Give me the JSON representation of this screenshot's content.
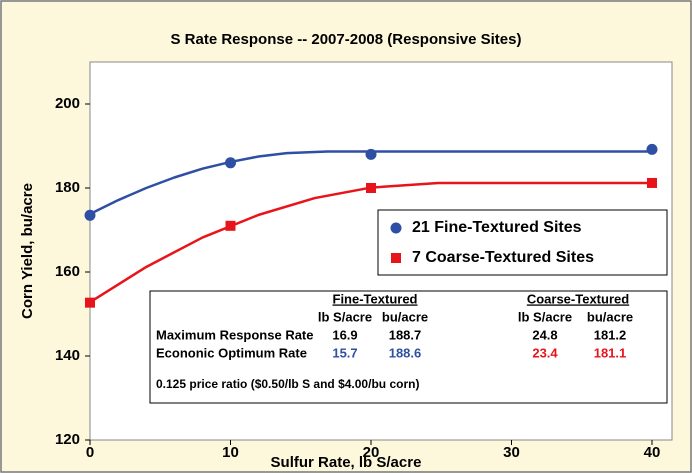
{
  "chart_data": {
    "type": "scatter",
    "title": "S Rate Response -- 2007-2008 (Responsive Sites)",
    "x_label": "Sulfur Rate, lb S/acre",
    "y_label": "Corn Yield, bu/acre",
    "xlim": [
      0,
      40
    ],
    "xticks": [
      0,
      10,
      20,
      30,
      40
    ],
    "ylim": [
      120,
      210
    ],
    "yticks": [
      120,
      140,
      160,
      180,
      200
    ],
    "legend": "center right",
    "series": [
      {
        "name": "21 Fine-Textured Sites",
        "color": "#2e4fa3",
        "marker": "circle",
        "x": [
          0,
          10,
          20,
          40
        ],
        "values": [
          173.5,
          186,
          188,
          189.2
        ],
        "fit": {
          "x": [
            0,
            2,
            4,
            6,
            8,
            10,
            12,
            14,
            16.9,
            40
          ],
          "values": [
            173.8,
            177.1,
            180.0,
            182.5,
            184.6,
            186.2,
            187.5,
            188.3,
            188.7,
            188.7
          ]
        }
      },
      {
        "name": "7 Coarse-Textured Sites",
        "color": "#e8141b",
        "marker": "square",
        "x": [
          0,
          10,
          20,
          40
        ],
        "values": [
          152.7,
          171,
          180,
          181.2
        ],
        "fit": {
          "x": [
            0,
            4,
            8,
            12,
            16,
            20,
            24.8,
            40
          ],
          "values": [
            152.8,
            161.2,
            168.2,
            173.6,
            177.6,
            180.1,
            181.2,
            181.2
          ]
        }
      }
    ],
    "table": {
      "groups": [
        "Fine-Textured",
        "Coarse-Textured"
      ],
      "columns": [
        "lb S/acre",
        "bu/acre",
        "lb S/acre",
        "bu/acre"
      ],
      "rows": [
        {
          "label": "Maximum Response Rate",
          "values": [
            16.9,
            188.7,
            24.8,
            181.2
          ],
          "colors": [
            "#000000",
            "#000000",
            "#000000",
            "#000000"
          ]
        },
        {
          "label": "Econonic Optimum Rate",
          "values": [
            15.7,
            188.6,
            23.4,
            181.1
          ],
          "colors": [
            "#2e4fa3",
            "#2e4fa3",
            "#e8141b",
            "#e8141b"
          ]
        }
      ],
      "note": "0.125 price ratio ($0.50/lb S and $4.00/bu corn)"
    }
  }
}
